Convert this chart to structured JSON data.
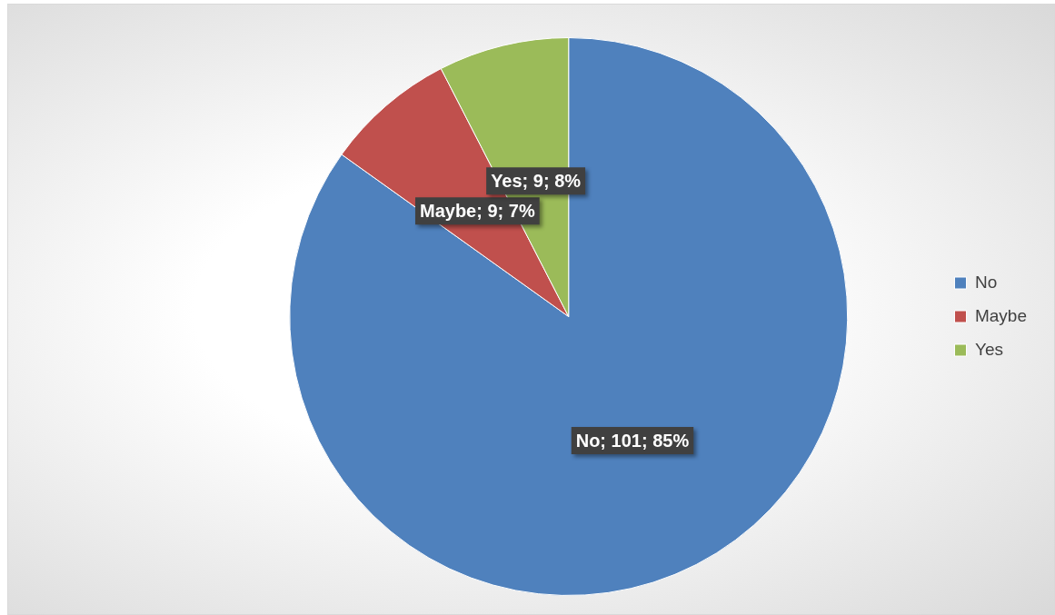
{
  "chart_data": {
    "type": "pie",
    "categories": [
      "No",
      "Maybe",
      "Yes"
    ],
    "values": [
      101,
      9,
      9
    ],
    "colors": [
      "#4f81bd",
      "#c0504d",
      "#9bbb59"
    ],
    "value_labels": [
      "No; 101; 85%",
      "Maybe; 9; 7%",
      "Yes; 9; 8%"
    ],
    "legend": "right"
  }
}
